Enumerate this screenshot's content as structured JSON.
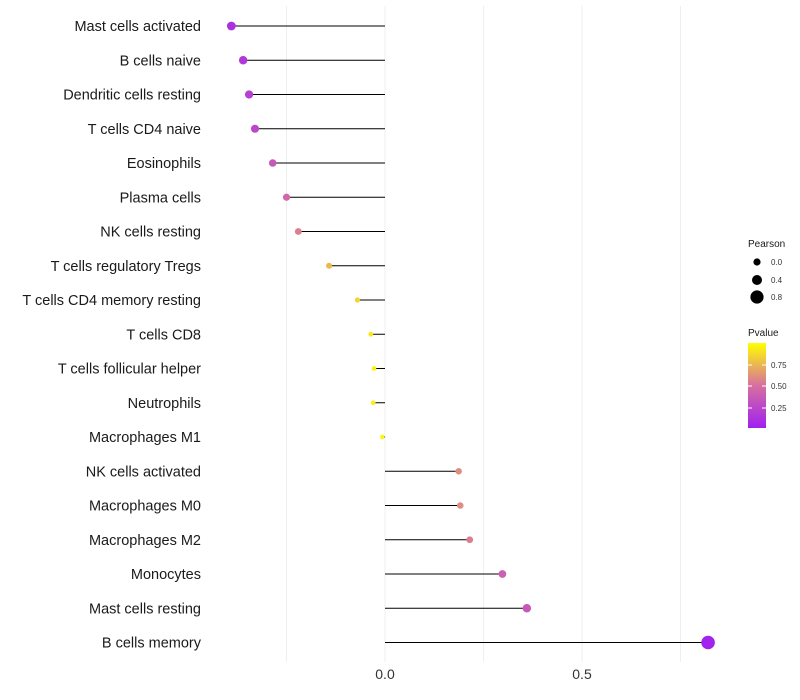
{
  "chart_data": {
    "type": "lollipop",
    "title": "",
    "xlabel": "",
    "ylabel": "",
    "xlim": [
      -0.5,
      1.04
    ],
    "x_ticks": [
      0.0,
      0.5
    ],
    "x_tick_labels": [
      "0.0",
      "0.5"
    ],
    "grid": true,
    "categories": [
      "Mast cells activated",
      "B cells naive",
      "Dendritic cells resting",
      "T cells CD4 naive",
      "Eosinophils",
      "Plasma cells",
      "NK cells resting",
      "T cells regulatory  Tregs ",
      "T cells CD4 memory resting",
      "T cells CD8",
      "T cells follicular helper",
      "Neutrophils",
      "Macrophages M1",
      "NK cells activated",
      "Macrophages M0",
      "Macrophages M2",
      "Monocytes",
      "Mast cells resting",
      "B cells memory"
    ],
    "values": [
      -0.39,
      -0.36,
      -0.345,
      -0.33,
      -0.285,
      -0.25,
      -0.22,
      -0.142,
      -0.07,
      -0.036,
      -0.028,
      -0.03,
      -0.007,
      0.187,
      0.191,
      0.215,
      0.298,
      0.36,
      0.82
    ],
    "pvalues": [
      0.1,
      0.15,
      0.2,
      0.25,
      0.35,
      0.45,
      0.55,
      0.75,
      0.85,
      0.92,
      0.95,
      0.95,
      0.98,
      0.6,
      0.6,
      0.55,
      0.4,
      0.35,
      0.02
    ],
    "legend": {
      "position": "right",
      "size": {
        "title": "Pearson",
        "labels": [
          "0.0",
          "0.4",
          "0.8"
        ],
        "values": [
          0.0,
          0.4,
          0.8
        ]
      },
      "color": {
        "title": "Pvalue",
        "labels": [
          "0.75",
          "0.50",
          "0.25"
        ],
        "values": [
          0.75,
          0.5,
          0.25
        ],
        "low_color": "#a020f0",
        "mid_color": "#d670a0",
        "high_color": "#ffff00"
      }
    }
  }
}
